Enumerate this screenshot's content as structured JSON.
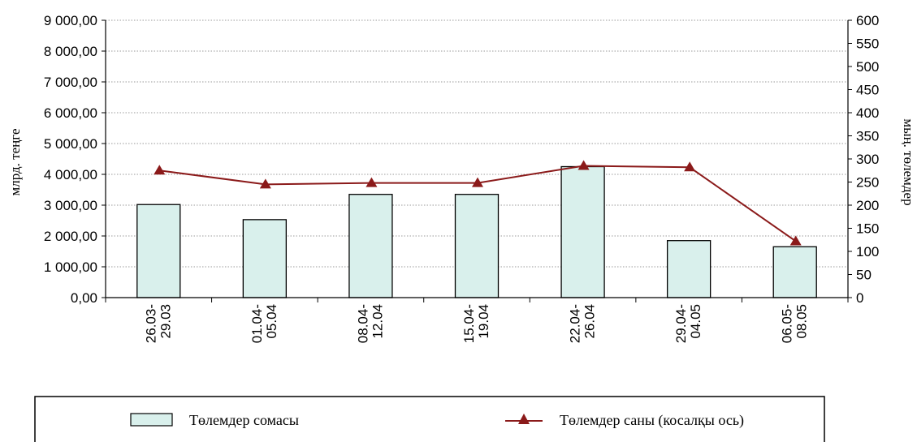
{
  "chart_data": {
    "type": "bar",
    "categories": [
      [
        "26.03-",
        "29.03"
      ],
      [
        "01.04-",
        "05.04"
      ],
      [
        "08.04-",
        "12.04"
      ],
      [
        "15.04-",
        "19.04"
      ],
      [
        "22.04-",
        "26.04"
      ],
      [
        "29.04-",
        "04.05"
      ],
      [
        "06.05-",
        "08.05"
      ]
    ],
    "series": [
      {
        "name": "Төлемдер сомасы",
        "type": "bar",
        "axis": "left",
        "values": [
          3020,
          2530,
          3350,
          3350,
          4250,
          1850,
          1650
        ],
        "fill": "#d9f0ec",
        "stroke": "#000000"
      },
      {
        "name": "Төлемдер саны (косалқы ось)",
        "type": "line",
        "axis": "right",
        "values": [
          275,
          245,
          248,
          248,
          285,
          282,
          122
        ],
        "color": "#8b1a1a",
        "marker": "triangle"
      }
    ],
    "ylabel": "млрд. теңге",
    "ylabel_right": "мың. төлемдер",
    "ylim": [
      0,
      9000
    ],
    "ylim_right": [
      0,
      600
    ],
    "y_ticks": [
      "0,00",
      "1 000,00",
      "2 000,00",
      "3 000,00",
      "4 000,00",
      "5 000,00",
      "6 000,00",
      "7 000,00",
      "8 000,00",
      "9 000,00"
    ],
    "y_ticks_right": [
      "0",
      "50",
      "100",
      "150",
      "200",
      "250",
      "300",
      "350",
      "400",
      "450",
      "500",
      "550",
      "600"
    ],
    "grid": true,
    "legend_position": "bottom"
  }
}
